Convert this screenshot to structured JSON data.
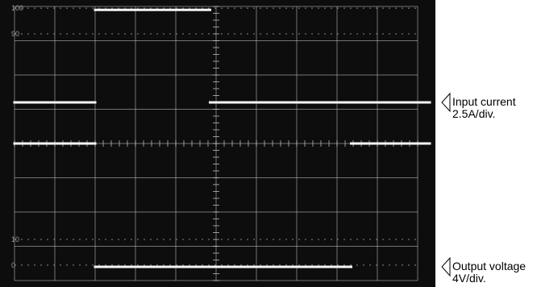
{
  "chart_data": {
    "type": "line",
    "title": "",
    "xlabel": "",
    "ylabel": "",
    "grid": true,
    "x_divisions": 10,
    "y_divisions": 8,
    "xlim": [
      0,
      10
    ],
    "ylim": [
      0,
      8
    ],
    "scale_marks": [
      {
        "text": "100",
        "y": 7.95
      },
      {
        "text": "90",
        "y": 7.2
      },
      {
        "text": "10",
        "y": 1.2
      },
      {
        "text": "0",
        "y": 0.45
      }
    ],
    "series": [
      {
        "name": "Input current",
        "label_line1": "Input current",
        "label_line2": "2.5A/div.",
        "marker_y": 5.2,
        "segments": [
          {
            "x": [
              0,
              2.0
            ],
            "y": [
              5.2,
              5.2
            ]
          },
          {
            "x": [
              2.0,
              4.85
            ],
            "y": [
              7.9,
              7.9
            ]
          },
          {
            "x": [
              4.85,
              10.3
            ],
            "y": [
              5.2,
              5.2
            ]
          }
        ]
      },
      {
        "name": "Output voltage",
        "label_line1": "Output voltage",
        "label_line2": "4V/div.",
        "marker_y": 0.4,
        "segments": [
          {
            "x": [
              0,
              2.0
            ],
            "y": [
              4.0,
              4.0
            ]
          },
          {
            "x": [
              2.0,
              8.35
            ],
            "y": [
              0.4,
              0.4
            ]
          },
          {
            "x": [
              8.35,
              10.3
            ],
            "y": [
              4.0,
              4.0
            ]
          }
        ]
      }
    ]
  }
}
